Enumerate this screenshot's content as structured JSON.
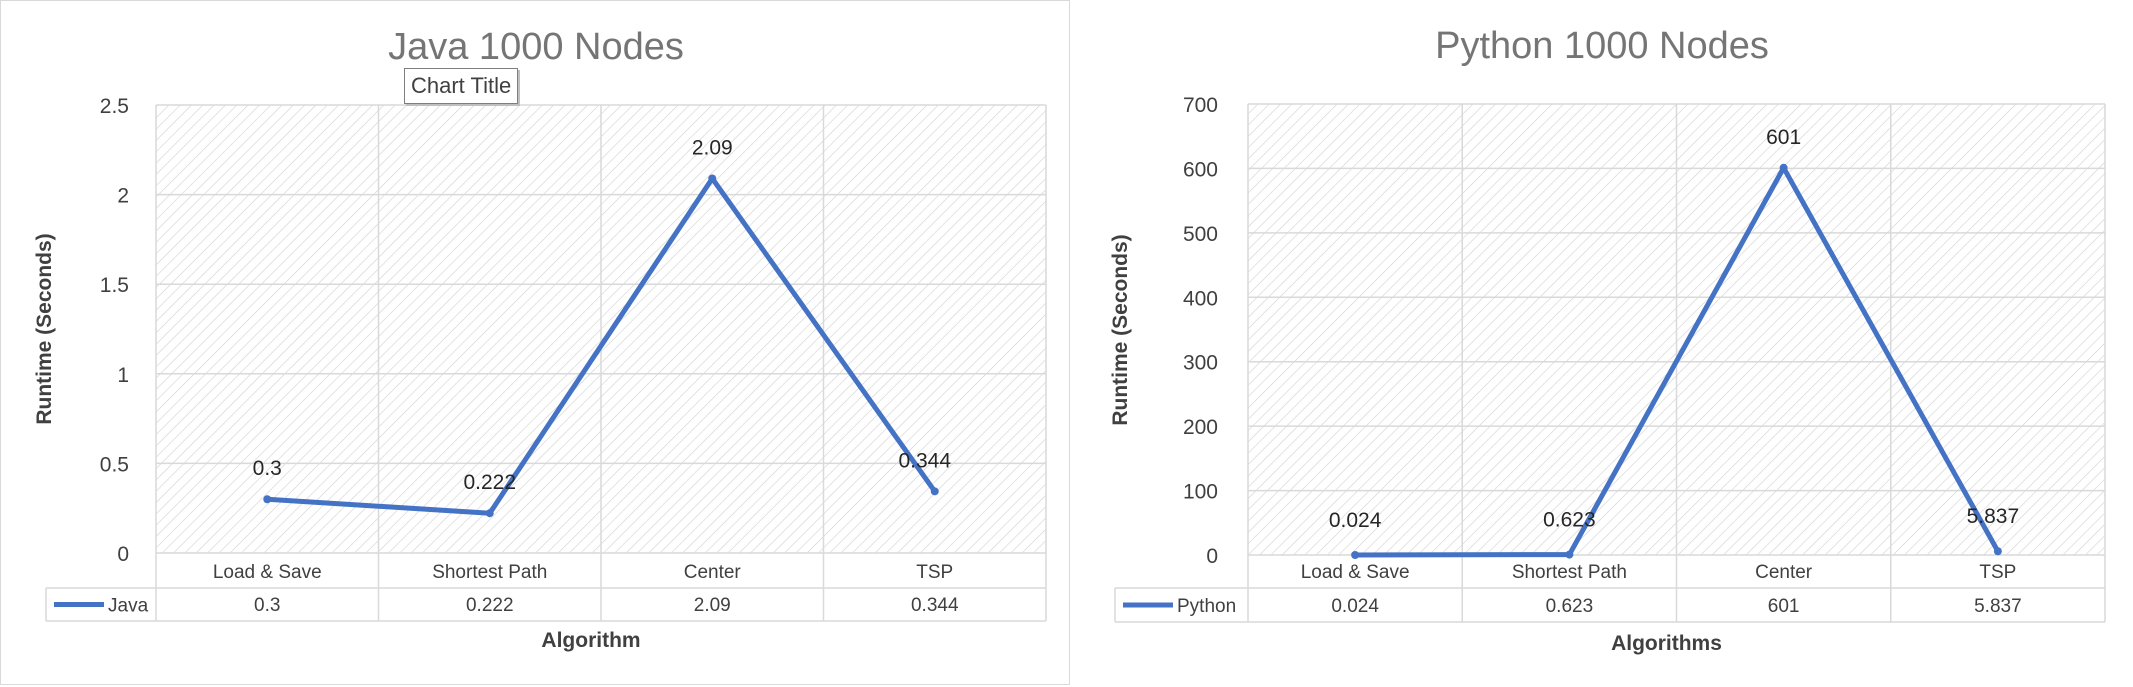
{
  "colors": {
    "series": "#4472C4",
    "grid": "#d9d9d9",
    "text": "#404040",
    "title": "#757575"
  },
  "tooltip": {
    "text": "Chart Title"
  },
  "chart_data": [
    {
      "type": "line",
      "title": "Java 1000 Nodes",
      "xlabel": "Algorithm",
      "ylabel": "Runtime (Seconds)",
      "categories": [
        "Load & Save",
        "Shortest Path",
        "Center",
        "TSP"
      ],
      "ylim": [
        0,
        2.5
      ],
      "yticks": [
        "0",
        "0.5",
        "1",
        "1.5",
        "2",
        "2.5"
      ],
      "series": [
        {
          "name": "Java",
          "values": [
            0.3,
            0.222,
            2.09,
            0.344
          ],
          "labels": [
            "0.3",
            "0.222",
            "2.09",
            "0.344"
          ]
        }
      ],
      "grid": true,
      "legend": "data-table"
    },
    {
      "type": "line",
      "title": "Python 1000 Nodes",
      "xlabel": "Algorithms",
      "ylabel": "Runtime (Seconds)",
      "categories": [
        "Load & Save",
        "Shortest Path",
        "Center",
        "TSP"
      ],
      "ylim": [
        0,
        700
      ],
      "yticks": [
        "0",
        "100",
        "200",
        "300",
        "400",
        "500",
        "600",
        "700"
      ],
      "series": [
        {
          "name": "Python",
          "values": [
            0.024,
            0.623,
            601,
            5.837
          ],
          "labels": [
            "0.024",
            "0.623",
            "601",
            "5.837"
          ]
        }
      ],
      "grid": true,
      "legend": "data-table"
    }
  ]
}
